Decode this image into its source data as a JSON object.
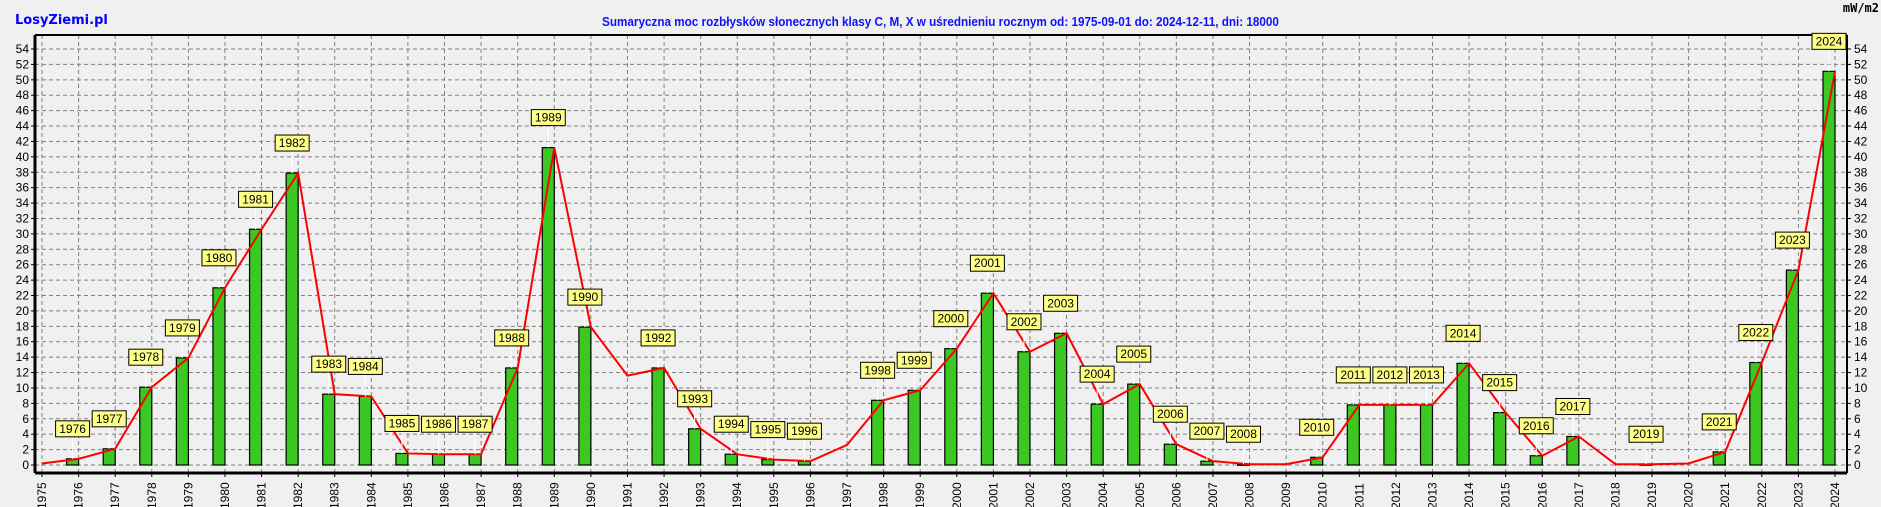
{
  "site": "LosyZiemi.pl",
  "unit": "mW/m2",
  "chart_data": {
    "type": "bar",
    "title": "Sumaryczna moc rozbłysków słonecznych klasy C, M, X w uśrednieniu rocznym od: 1975-09-01 do: 2024-12-11, dni: 18000",
    "xlabel": "",
    "ylabel": "mW/m2",
    "ylim": [
      0,
      54
    ],
    "ytick_step": 2,
    "grid": true,
    "colors": {
      "bar": "#3cc823",
      "line": "#ff0000",
      "label_bg": "#ffff88",
      "grid": "#808080",
      "title": "#1010ff"
    },
    "categories": [
      "1975",
      "1976",
      "1977",
      "1978",
      "1979",
      "1980",
      "1981",
      "1982",
      "1983",
      "1984",
      "1985",
      "1986",
      "1987",
      "1988",
      "1989",
      "1990",
      "1991",
      "1992",
      "1993",
      "1994",
      "1995",
      "1996",
      "1997",
      "1998",
      "1999",
      "2000",
      "2001",
      "2002",
      "2003",
      "2004",
      "2005",
      "2006",
      "2007",
      "2008",
      "2009",
      "2010",
      "2011",
      "2012",
      "2013",
      "2014",
      "2015",
      "2016",
      "2017",
      "2018",
      "2019",
      "2020",
      "2021",
      "2022",
      "2023",
      "2024"
    ],
    "series": [
      {
        "name": "bars",
        "type": "bar",
        "values": [
          null,
          0.8,
          2.1,
          10.1,
          13.9,
          23.0,
          30.6,
          37.9,
          9.2,
          8.9,
          1.5,
          1.4,
          1.4,
          12.6,
          41.2,
          17.9,
          null,
          12.6,
          4.7,
          1.4,
          0.7,
          0.5,
          null,
          8.4,
          9.7,
          15.1,
          22.3,
          14.7,
          17.1,
          7.9,
          10.5,
          2.7,
          0.5,
          0.1,
          null,
          1.0,
          7.8,
          7.8,
          7.8,
          13.2,
          6.8,
          1.2,
          3.7,
          null,
          0.1,
          null,
          1.7,
          13.3,
          25.3,
          51.1
        ]
      },
      {
        "name": "trend",
        "type": "line",
        "values": [
          0.2,
          0.8,
          2.1,
          10.1,
          13.9,
          23.0,
          30.6,
          37.9,
          9.2,
          8.9,
          1.5,
          1.4,
          1.4,
          12.6,
          41.2,
          17.9,
          11.6,
          12.6,
          4.7,
          1.4,
          0.7,
          0.5,
          2.6,
          8.4,
          9.7,
          15.1,
          22.3,
          14.7,
          17.1,
          7.9,
          10.5,
          2.7,
          0.5,
          0.1,
          0.1,
          1.0,
          7.8,
          7.8,
          7.8,
          13.2,
          6.8,
          1.2,
          3.7,
          0.1,
          0.1,
          0.2,
          1.7,
          13.3,
          25.3,
          51.1
        ]
      }
    ],
    "bar_labels": [
      "",
      "1976",
      "1977",
      "1978",
      "1979",
      "1980",
      "1981",
      "1982",
      "1983",
      "1984",
      "1985",
      "1986",
      "1987",
      "1988",
      "1989",
      "1990",
      "",
      "1992",
      "1993",
      "1994",
      "1995",
      "1996",
      "",
      "1998",
      "1999",
      "2000",
      "2001",
      "2002",
      "2003",
      "2004",
      "2005",
      "2006",
      "2007",
      "2008",
      "",
      "2010",
      "2011",
      "2012",
      "2013",
      "2014",
      "2015",
      "2016",
      "2017",
      "",
      "2019",
      "",
      "2021",
      "2022",
      "2023",
      "2024"
    ]
  }
}
